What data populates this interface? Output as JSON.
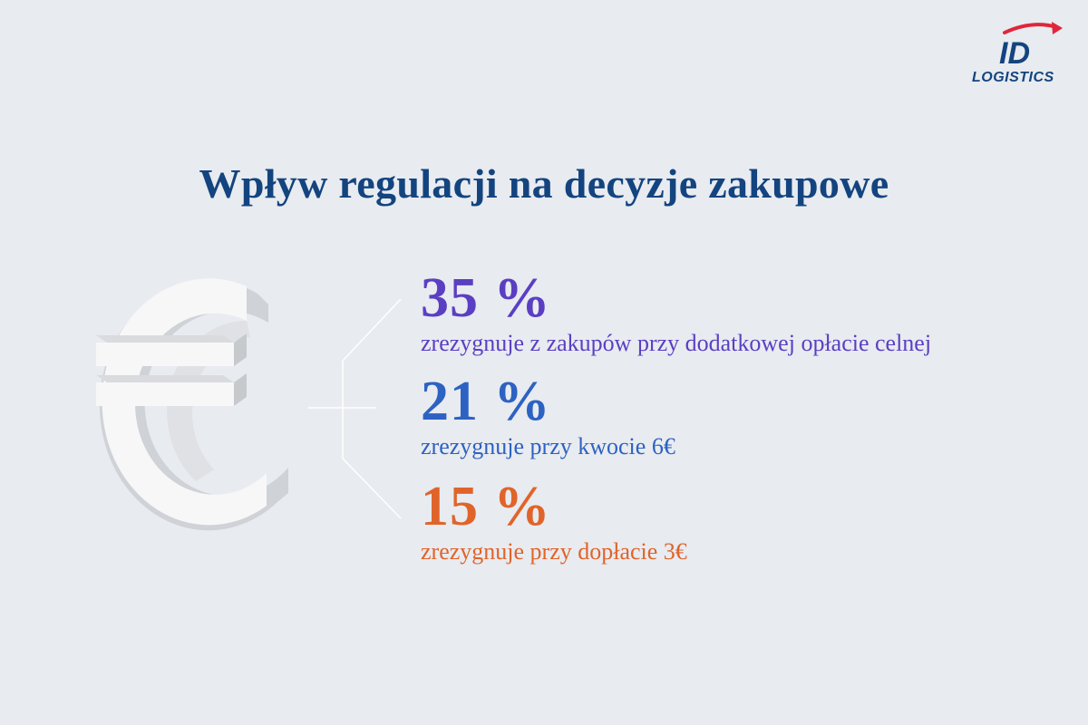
{
  "logo": {
    "mark": "ID",
    "text": "LOGISTICS",
    "colors": {
      "primary": "#13447f",
      "arrow": "#e0263a"
    }
  },
  "title": "Wpływ regulacji na decyzje zakupowe",
  "illustration": {
    "icon": "euro-sign-3d-icon"
  },
  "stats": [
    {
      "value": "35 %",
      "description": "zrezygnuje z zakupów przy dodatkowej opłacie celnej",
      "color": "#5b3fc2"
    },
    {
      "value": "21 %",
      "description": "zrezygnuje przy kwocie 6€",
      "color": "#2d62c2"
    },
    {
      "value": "15 %",
      "description": "zrezygnuje przy dopłacie 3€",
      "color": "#e0642a"
    }
  ],
  "colors": {
    "background": "#e8ebf0",
    "title": "#13447f"
  }
}
